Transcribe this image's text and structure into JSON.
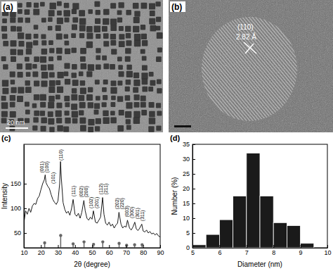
{
  "chart_data": [
    {
      "type": "image",
      "title": "(a)",
      "scale_bar": "20 nm"
    },
    {
      "type": "image",
      "title": "(b)",
      "annotations": [
        {
          "text": "(110)"
        },
        {
          "text": "2.82 Å"
        }
      ]
    },
    {
      "type": "line",
      "title": "(c)",
      "xlabel": "2θ (degree)",
      "ylabel": "Intensity",
      "color": "#000000",
      "x": [
        10,
        11,
        12,
        13,
        14,
        15,
        16,
        17,
        18,
        19,
        20,
        21,
        22,
        22.5,
        23,
        24,
        25,
        26,
        27,
        28,
        29,
        30,
        31,
        31.5,
        32,
        33,
        34,
        35,
        36,
        37,
        38,
        38.9,
        40,
        41,
        42,
        43,
        44,
        45.2,
        46,
        47,
        48,
        49,
        50,
        50.8,
        52,
        53,
        54,
        55,
        56.2,
        57,
        58,
        59,
        60,
        61,
        62,
        63,
        64,
        65,
        65.8,
        67,
        68,
        69,
        70,
        70.8,
        72,
        73,
        74,
        75.1,
        76,
        77,
        78,
        79.2,
        80,
        81,
        82,
        83,
        84,
        85,
        86,
        87,
        88,
        89,
        90
      ],
      "values": [
        70,
        95,
        88,
        100,
        92,
        105,
        110,
        108,
        120,
        125,
        138,
        150,
        158,
        168,
        152,
        145,
        140,
        128,
        118,
        112,
        108,
        115,
        150,
        195,
        160,
        112,
        98,
        90,
        94,
        86,
        100,
        118,
        88,
        84,
        90,
        80,
        92,
        116,
        95,
        80,
        76,
        82,
        78,
        95,
        72,
        70,
        76,
        82,
        122,
        88,
        70,
        66,
        72,
        64,
        68,
        60,
        66,
        70,
        92,
        68,
        60,
        64,
        62,
        76,
        60,
        56,
        62,
        72,
        58,
        55,
        60,
        68,
        54,
        52,
        56,
        50,
        53,
        48,
        50,
        46,
        49,
        44,
        42
      ],
      "reference": {
        "x": [
          22.2,
          31.6,
          38.9,
          45.3,
          50.9,
          56.3,
          65.9,
          70.3,
          75.0,
          79.4
        ],
        "values": [
          30,
          45,
          28,
          32,
          27,
          32,
          29,
          25,
          26,
          26
        ],
        "color": "#666666",
        "marker": "circle"
      },
      "annotations": [
        {
          "text": "(001)",
          "x": 20.5,
          "y": 172
        },
        {
          "text": "(100)",
          "x": 23.5,
          "y": 172
        },
        {
          "text": "(101)",
          "x": 27,
          "y": 150
        },
        {
          "text": "(110)",
          "x": 31.5,
          "y": 197
        },
        {
          "text": "(111)",
          "x": 38.9,
          "y": 124
        },
        {
          "text": "(002)",
          "x": 43.5,
          "y": 122
        },
        {
          "text": "(200)",
          "x": 46.5,
          "y": 122
        },
        {
          "text": "(102)",
          "x": 49.5,
          "y": 100
        },
        {
          "text": "(201)",
          "x": 52.5,
          "y": 100
        },
        {
          "text": "(112)",
          "x": 55,
          "y": 128
        },
        {
          "text": "(211)",
          "x": 58,
          "y": 128
        },
        {
          "text": "(202)",
          "x": 64.5,
          "y": 98
        },
        {
          "text": "(220)",
          "x": 67.5,
          "y": 98
        },
        {
          "text": "(003)",
          "x": 70.5,
          "y": 82
        },
        {
          "text": "(300)",
          "x": 73.5,
          "y": 80
        },
        {
          "text": "(301)",
          "x": 76.5,
          "y": 78
        },
        {
          "text": "(311)",
          "x": 79.5,
          "y": 74
        }
      ],
      "xlim": [
        10,
        90
      ],
      "xticks": [
        10,
        20,
        30,
        40,
        50,
        60,
        70,
        80,
        90
      ],
      "ylim": [
        20,
        230
      ],
      "yticks": [
        50,
        100,
        150
      ]
    },
    {
      "type": "histogram",
      "title": "(d)",
      "xlabel": "Diameter (nm)",
      "ylabel": "Number (%)",
      "color": "#1a1a1a",
      "bins": [
        5.0,
        5.5,
        6.0,
        6.5,
        7.0,
        7.5,
        8.0,
        8.5,
        9.0,
        9.5
      ],
      "values": [
        1,
        4.5,
        9.5,
        17.5,
        32,
        17.5,
        8.5,
        7.5,
        1.5
      ],
      "xlim": [
        5,
        10
      ],
      "xticks": [
        5,
        6,
        7,
        8,
        9,
        10
      ],
      "ylim": [
        0,
        35
      ],
      "yticks": [
        0,
        5,
        10,
        15,
        20,
        25,
        30,
        35
      ]
    }
  ]
}
